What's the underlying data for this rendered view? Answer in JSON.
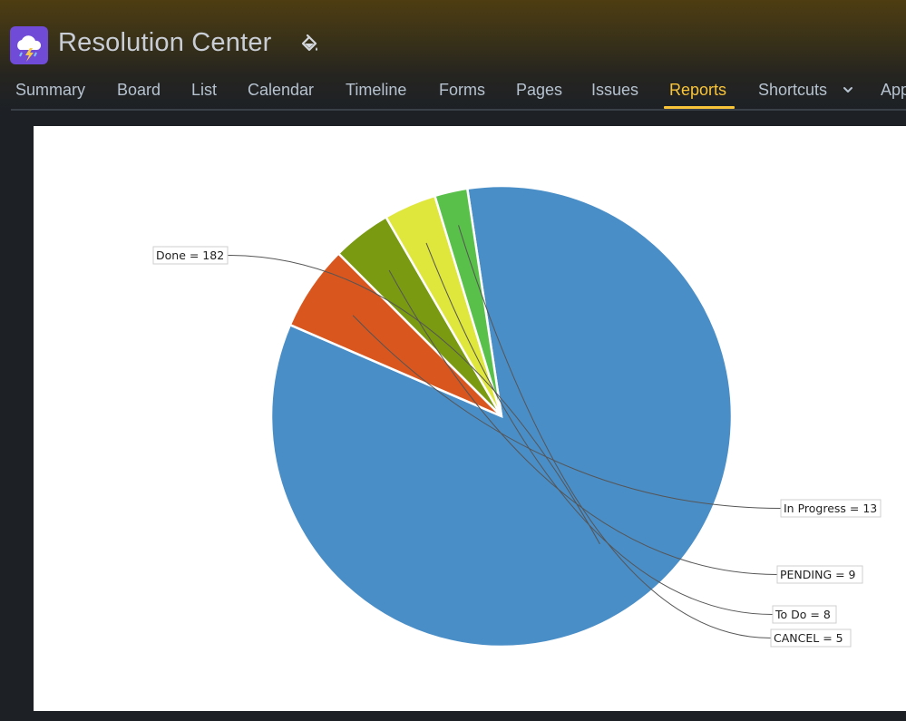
{
  "app": {
    "title": "Resolution Center",
    "icon": "cloud-lightning-icon",
    "icon_color": "#6f4bd8"
  },
  "nav": {
    "tabs": [
      {
        "label": "Summary"
      },
      {
        "label": "Board"
      },
      {
        "label": "List"
      },
      {
        "label": "Calendar"
      },
      {
        "label": "Timeline"
      },
      {
        "label": "Forms"
      },
      {
        "label": "Pages"
      },
      {
        "label": "Issues"
      },
      {
        "label": "Reports",
        "active": true
      },
      {
        "label": "Shortcuts"
      },
      {
        "label": "Apps"
      }
    ],
    "active_color": "#f8c43a",
    "text_color": "#b6c2cf"
  },
  "chart_data": {
    "type": "pie",
    "title": "",
    "slices": [
      {
        "label": "Done",
        "value": 182,
        "color": "#4a8ec8",
        "text": "Done = 182"
      },
      {
        "label": "In Progress",
        "value": 13,
        "color": "#d9561f",
        "text": "In Progress = 13"
      },
      {
        "label": "PENDING",
        "value": 9,
        "color": "#7a9a12",
        "text": "PENDING = 9"
      },
      {
        "label": "To Do",
        "value": 8,
        "color": "#dfe63c",
        "text": "To Do = 8"
      },
      {
        "label": "CANCEL",
        "value": 5,
        "color": "#59c14a",
        "text": "CANCEL = 5"
      }
    ]
  }
}
